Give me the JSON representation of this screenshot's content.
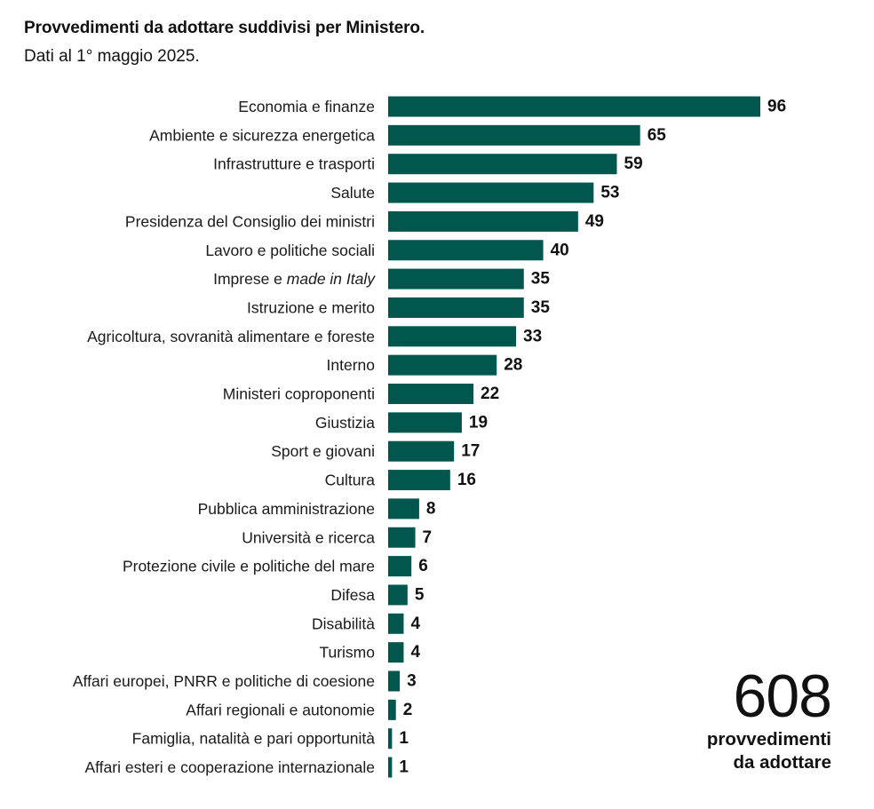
{
  "header": {
    "title": "Provvedimenti da adottare suddivisi per Ministero.",
    "subtitle": "Dati al 1° maggio 2025."
  },
  "total": {
    "number": "608",
    "line1": "provvedimenti",
    "line2": "da adottare"
  },
  "colors": {
    "bar": "#01574e",
    "text": "#111111"
  },
  "chart_data": {
    "type": "bar",
    "orientation": "horizontal",
    "title": "Provvedimenti da adottare suddivisi per Ministero.",
    "subtitle": "Dati al 1° maggio 2025.",
    "categories": [
      "Economia e finanze",
      "Ambiente e sicurezza energetica",
      "Infrastrutture e trasporti",
      "Salute",
      "Presidenza del Consiglio dei ministri",
      "Lavoro e politiche sociali",
      "Imprese e made in Italy",
      "Istruzione e merito",
      "Agricoltura, sovranità alimentare e foreste",
      "Interno",
      "Ministeri coproponenti",
      "Giustizia",
      "Sport e giovani",
      "Cultura",
      "Pubblica amministrazione",
      "Università e ricerca",
      "Protezione civile e politiche del mare",
      "Difesa",
      "Disabilità",
      "Turismo",
      "Affari europei, PNRR e politiche di coesione",
      "Affari regionali e autonomie",
      "Famiglia, natalità e pari opportunità",
      "Affari esteri e cooperazione internazionale"
    ],
    "values": [
      96,
      65,
      59,
      53,
      49,
      40,
      35,
      35,
      33,
      28,
      22,
      19,
      17,
      16,
      8,
      7,
      6,
      5,
      4,
      4,
      3,
      2,
      1,
      1
    ],
    "italic_fragments": {
      "6": "made in Italy"
    },
    "xlim": [
      0,
      96
    ],
    "grid": false,
    "legend": "none"
  }
}
